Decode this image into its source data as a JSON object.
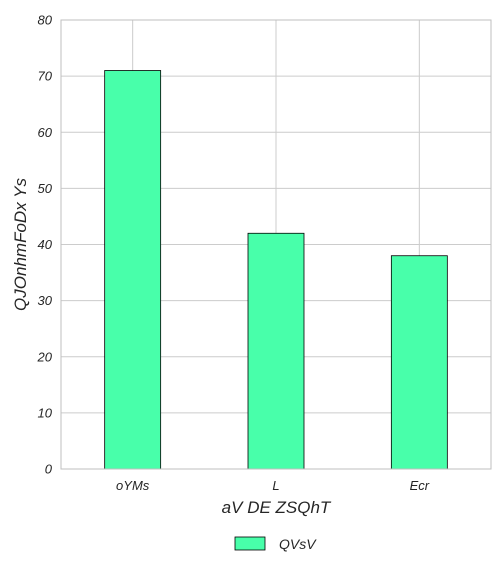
{
  "chart_data": {
    "type": "bar",
    "categories": [
      "oYMs",
      "L",
      "Ecr"
    ],
    "series": [
      {
        "name": "QVsV",
        "values": [
          71,
          42,
          38
        ]
      }
    ],
    "xlabel": "aV DE ZSQhT",
    "ylabel": "QJOnhmFoDx Ys",
    "ylim": [
      0,
      80
    ],
    "yticks": [
      0,
      10,
      20,
      30,
      40,
      50,
      60,
      70,
      80
    ],
    "grid": true,
    "legend_position": "bottom-center",
    "colors": {
      "bar": "#48ffaa",
      "bar_edge": "#000000",
      "grid": "#cccccc",
      "axes": "#bfbfbf"
    }
  }
}
